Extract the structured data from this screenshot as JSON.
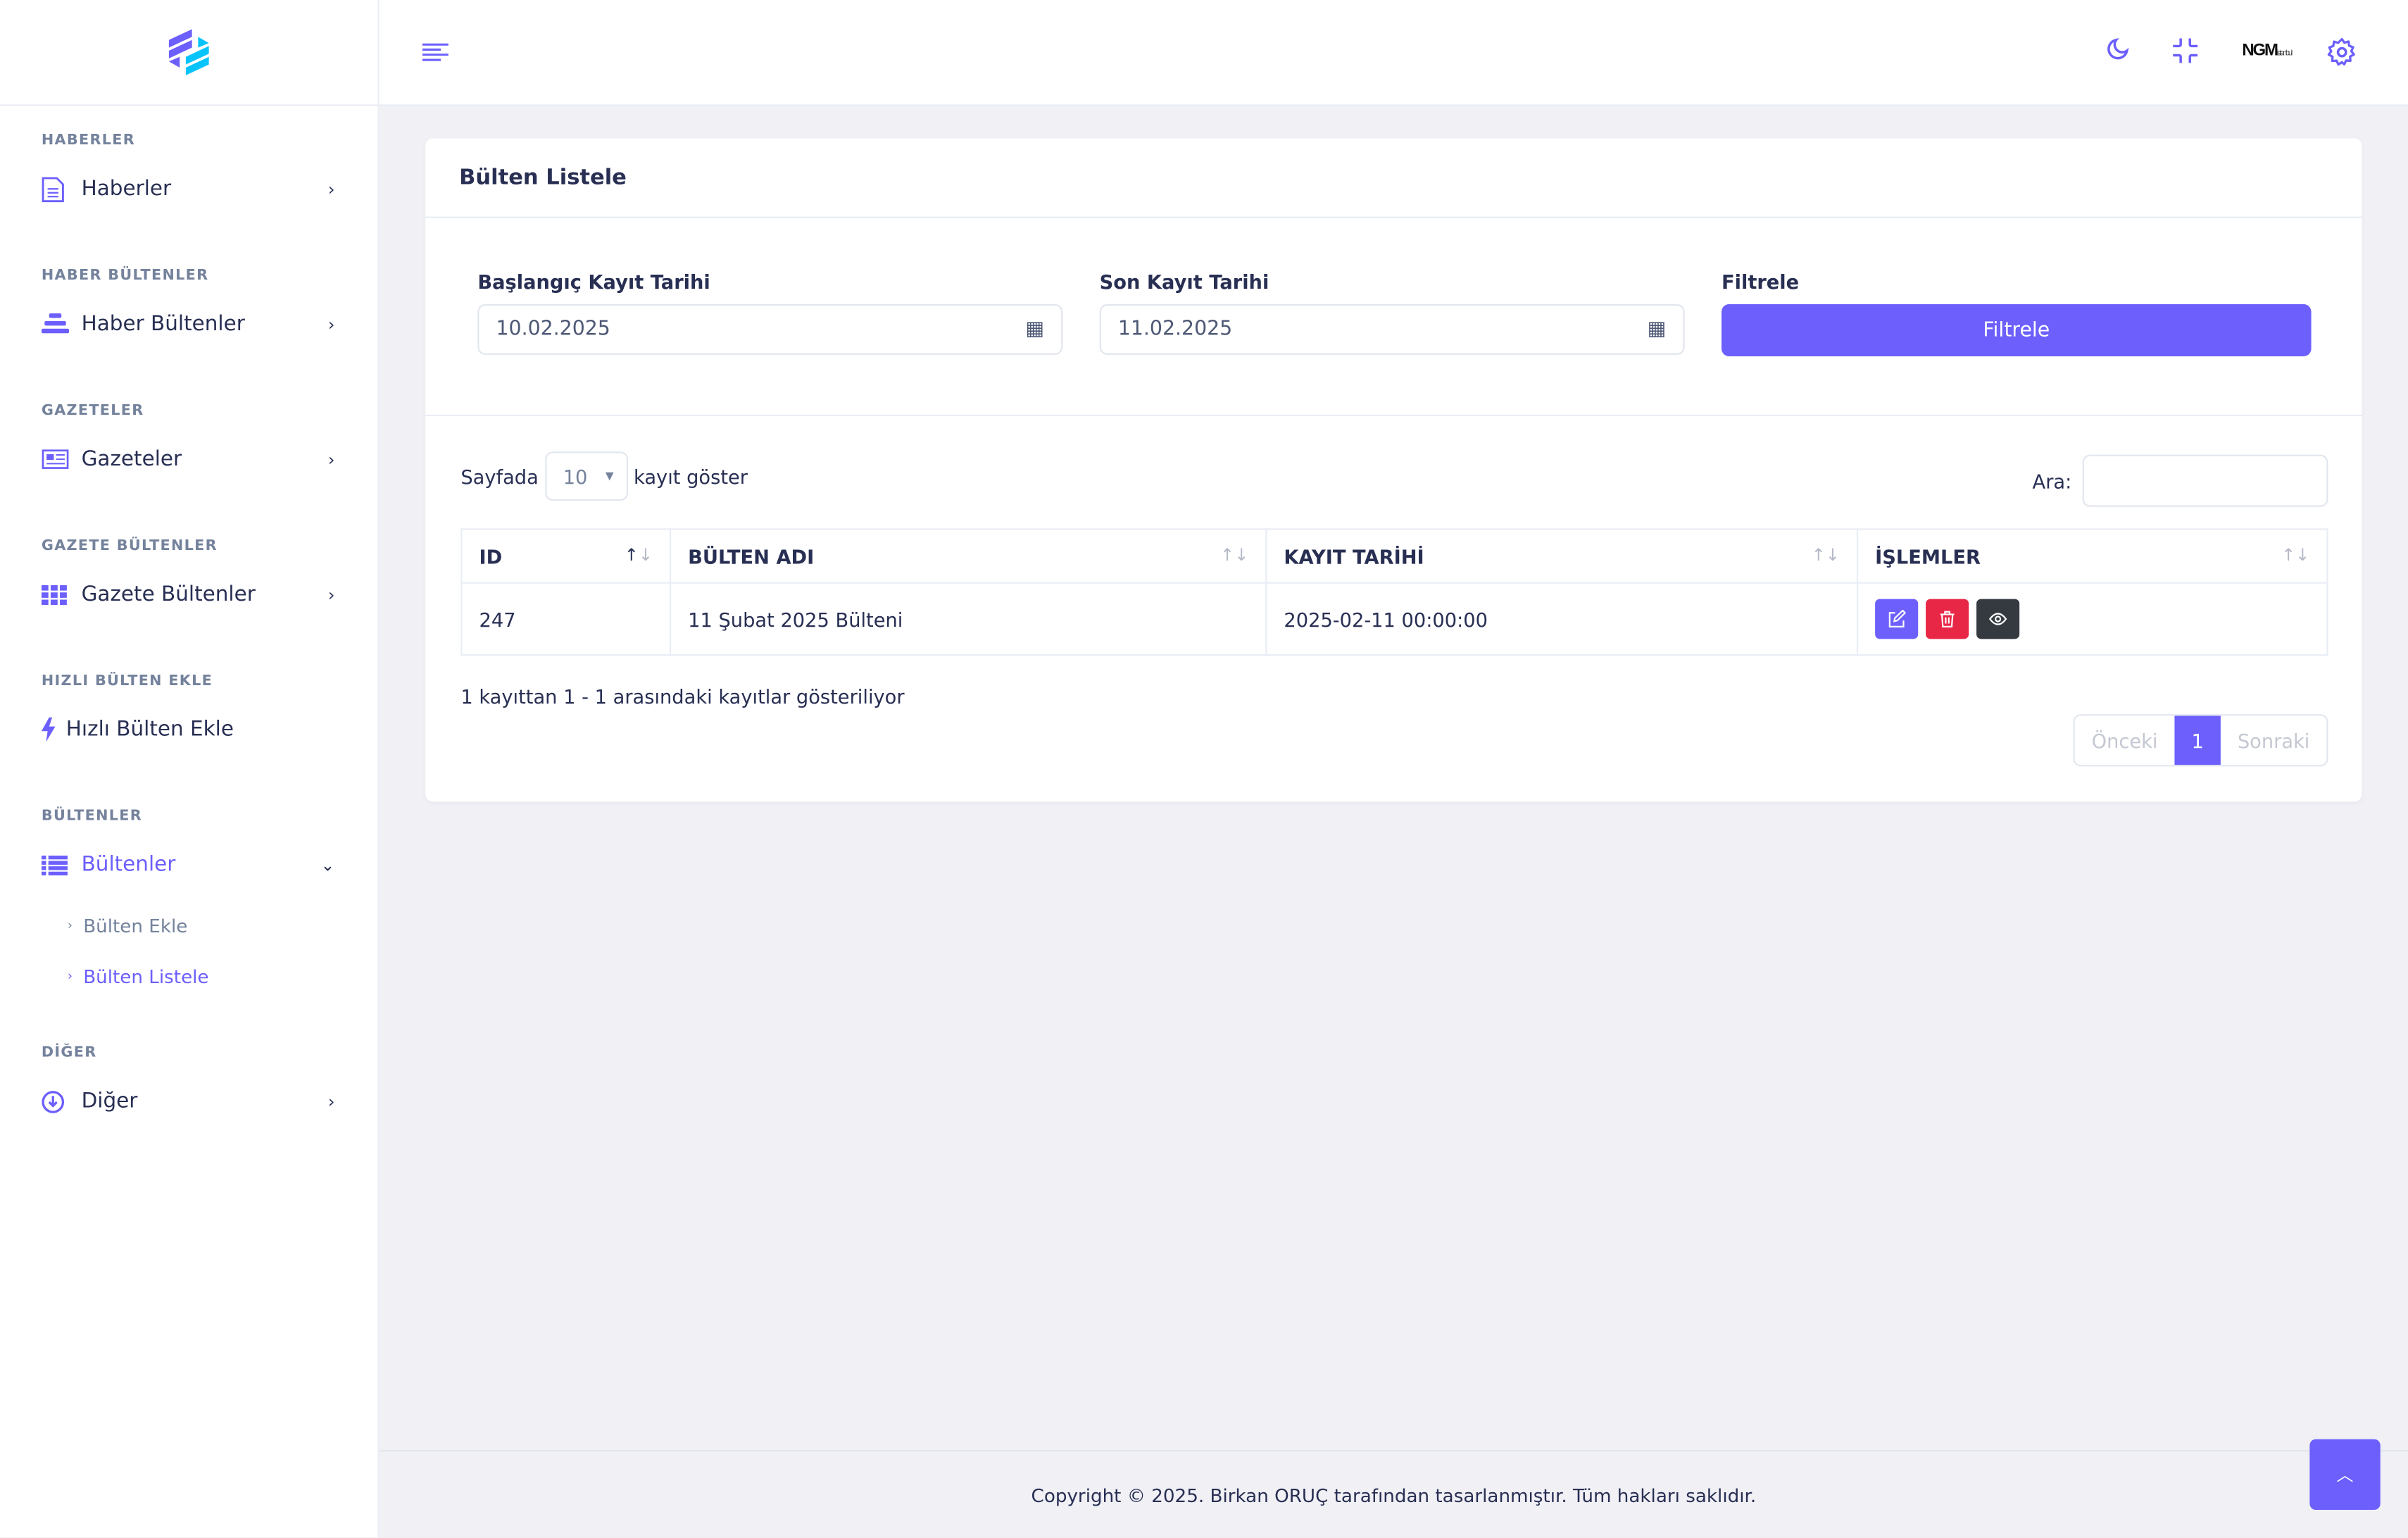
{
  "colors": {
    "accent": "#6c5ffc",
    "danger": "#e82646",
    "dark": "#343a40",
    "logo_secondary": "#05c3fb"
  },
  "sidebar": {
    "sections": [
      {
        "title": "HABERLER",
        "item": "Haberler",
        "icon": "file-text-icon"
      },
      {
        "title": "HABER BÜLTENLER",
        "item": "Haber Bültenler",
        "icon": "align-center-icon"
      },
      {
        "title": "GAZETELER",
        "item": "Gazeteler",
        "icon": "newspaper-icon"
      },
      {
        "title": "GAZETE BÜLTENLER",
        "item": "Gazete Bültenler",
        "icon": "grid-icon"
      },
      {
        "title": "HIZLI BÜLTEN EKLE",
        "item": "Hızlı Bülten Ekle",
        "icon": "bolt-icon"
      },
      {
        "title": "BÜLTENLER",
        "item": "Bültenler",
        "icon": "list-icon",
        "subitems": [
          "Bülten Ekle",
          "Bülten Listele"
        ]
      },
      {
        "title": "DİĞER",
        "item": "Diğer",
        "icon": "download-circle-icon"
      }
    ]
  },
  "header": {
    "icons": [
      "menu-icon",
      "moon-icon",
      "minimize-icon",
      "ngm-logo",
      "gear-icon"
    ],
    "logo_text": "NGM",
    "logo_sub": "istanbul"
  },
  "card": {
    "title": "Bülten Listele",
    "filters": {
      "start_label": "Başlangıç Kayıt Tarihi",
      "start_value": "10.02.2025",
      "end_label": "Son Kayıt Tarihi",
      "end_value": "11.02.2025",
      "filter_label": "Filtrele",
      "filter_button": "Filtrele"
    },
    "length": {
      "prefix": "Sayfada",
      "value": "10",
      "suffix": "kayıt göster"
    },
    "search_label": "Ara:",
    "search_value": "",
    "columns": [
      "ID",
      "BÜLTEN ADI",
      "KAYIT TARİHİ",
      "İŞLEMLER"
    ],
    "rows": [
      {
        "id": "247",
        "name": "11 Şubat 2025 Bülteni",
        "date": "2025-02-11 00:00:00"
      }
    ],
    "info": "1 kayıttan 1 - 1 arasındaki kayıtlar gösteriliyor",
    "pagination": {
      "prev": "Önceki",
      "current": "1",
      "next": "Sonraki"
    }
  },
  "footer": "Copyright © 2025. Birkan ORUÇ tarafından tasarlanmıştır. Tüm hakları saklıdır."
}
